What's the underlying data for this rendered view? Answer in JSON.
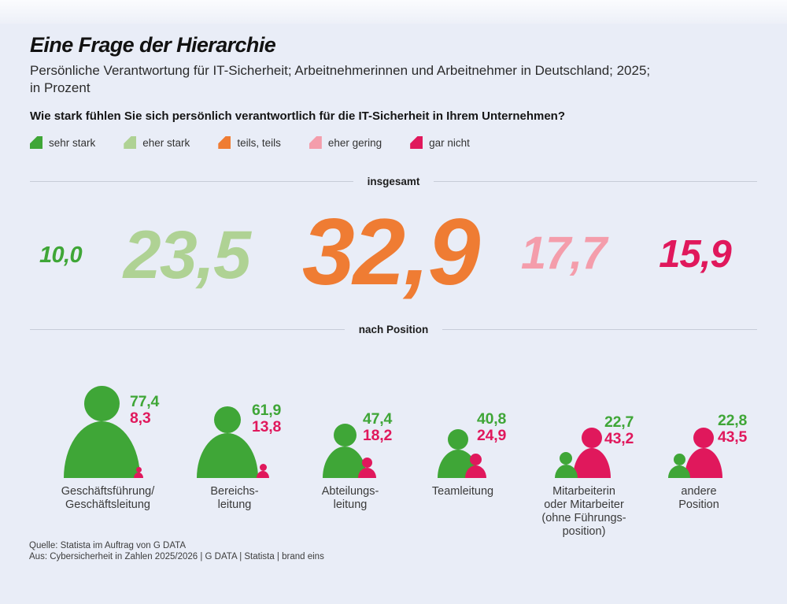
{
  "page": {
    "title": "Eine Frage der Hierarchie",
    "subtitle_line1": "Persönliche Verantwortung für IT-Sicherheit; Arbeitnehmerinnen und Arbeitnehmer in Deutschland; 2025;",
    "subtitle_line2": "in Prozent",
    "question": "Wie stark fühlen Sie sich persönlich verantwortlich für die IT-Sicherheit in Ihrem Unternehmen?"
  },
  "sections": {
    "total_label": "insgesamt",
    "position_label": "nach Position"
  },
  "legend": {
    "items": [
      {
        "label": "sehr stark",
        "color": "#3fa637"
      },
      {
        "label": "eher stark",
        "color": "#afd294"
      },
      {
        "label": "teils, teils",
        "color": "#ef7c33"
      },
      {
        "label": "eher gering",
        "color": "#f49dab"
      },
      {
        "label": "gar nicht",
        "color": "#e0185c"
      }
    ]
  },
  "footer": {
    "source_line1": "Quelle: Statista im Auftrag von G DATA",
    "source_line2": "Aus: Cybersicherheit in Zahlen 2025/2026 | G DATA | Statista | brand eins"
  },
  "colors": {
    "background": "#e9edf7",
    "sehr_stark": "#3fa637",
    "eher_stark": "#afd294",
    "teils_teils": "#ef7c33",
    "eher_gering": "#f49dab",
    "gar_nicht": "#e0185c",
    "divider_line": "#c7ccd8",
    "text_dark": "#151515",
    "text_gray": "#3a3a3a"
  },
  "chart_data": {
    "type": "pictogram",
    "title": "Eine Frage der Hierarchie",
    "subtitle": "Persönliche Verantwortung für IT-Sicherheit; Arbeitnehmerinnen und Arbeitnehmer in Deutschland; 2025; in Prozent",
    "question": "Wie stark fühlen Sie sich persönlich verantwortlich für die IT-Sicherheit in Ihrem Unternehmen?",
    "unit": "Prozent",
    "scale": [
      "sehr stark",
      "eher stark",
      "teils, teils",
      "eher gering",
      "gar nicht"
    ],
    "insgesamt": {
      "categories": [
        "sehr stark",
        "eher stark",
        "teils, teils",
        "eher gering",
        "gar nicht"
      ],
      "values": [
        10.0,
        23.5,
        32.9,
        17.7,
        15.9
      ],
      "display": [
        "10,0",
        "23,5",
        "32,9",
        "17,7",
        "15,9"
      ],
      "colors": [
        "#3fa637",
        "#afd294",
        "#ef7c33",
        "#f49dab",
        "#e0185c"
      ]
    },
    "nach_position": {
      "series_shown": [
        "sehr stark",
        "gar nicht"
      ],
      "groups": [
        {
          "label_lines": [
            "Geschäftsführung/",
            "Geschäftsleitung"
          ],
          "sehr_stark": 77.4,
          "sehr_stark_display": "77,4",
          "gar_nicht": 8.3,
          "gar_nicht_display": "8,3",
          "dominant": "sehr stark"
        },
        {
          "label_lines": [
            "Bereichs-",
            "leitung"
          ],
          "sehr_stark": 61.9,
          "sehr_stark_display": "61,9",
          "gar_nicht": 13.8,
          "gar_nicht_display": "13,8",
          "dominant": "sehr stark"
        },
        {
          "label_lines": [
            "Abteilungs-",
            "leitung"
          ],
          "sehr_stark": 47.4,
          "sehr_stark_display": "47,4",
          "gar_nicht": 18.2,
          "gar_nicht_display": "18,2",
          "dominant": "sehr stark"
        },
        {
          "label_lines": [
            "Teamleitung"
          ],
          "sehr_stark": 40.8,
          "sehr_stark_display": "40,8",
          "gar_nicht": 24.9,
          "gar_nicht_display": "24,9",
          "dominant": "sehr stark"
        },
        {
          "label_lines": [
            "Mitarbeiterin",
            "oder Mitarbeiter",
            "(ohne Führungs-",
            "position)"
          ],
          "sehr_stark": 22.7,
          "sehr_stark_display": "22,7",
          "gar_nicht": 43.2,
          "gar_nicht_display": "43,2",
          "dominant": "gar nicht"
        },
        {
          "label_lines": [
            "andere",
            "Position"
          ],
          "sehr_stark": 22.8,
          "sehr_stark_display": "22,8",
          "gar_nicht": 43.5,
          "gar_nicht_display": "43,5",
          "dominant": "gar nicht"
        }
      ]
    }
  }
}
